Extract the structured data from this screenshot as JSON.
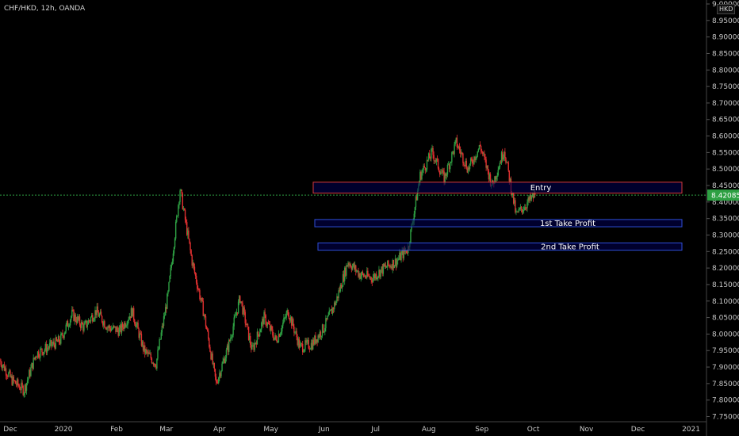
{
  "header": {
    "symbol_line": "CHF/HKD, 12h, OANDA",
    "currency": "HKD"
  },
  "price_axis": {
    "ticks": [
      "9.00000",
      "8.95000",
      "8.90000",
      "8.85000",
      "8.80000",
      "8.75000",
      "8.70000",
      "8.65000",
      "8.60000",
      "8.55000",
      "8.50000",
      "8.45000",
      "8.40000",
      "8.35000",
      "8.30000",
      "8.25000",
      "8.20000",
      "8.15000",
      "8.10000",
      "8.05000",
      "8.00000",
      "7.95000",
      "7.90000",
      "7.85000",
      "7.80000",
      "7.75000"
    ],
    "current_price": "8.42085",
    "current_price_value": 8.42085
  },
  "time_axis": {
    "ticks": [
      "Dec",
      "2020",
      "Feb",
      "Mar",
      "Apr",
      "May",
      "Jun",
      "Jul",
      "Aug",
      "Sep",
      "Oct",
      "Nov",
      "Dec",
      "2021"
    ]
  },
  "zones": [
    {
      "label": "Entry",
      "top": 8.46,
      "bottom": 8.427,
      "border": "#d93a3a"
    },
    {
      "label": "1st Take Profit",
      "top": 8.347,
      "bottom": 8.325,
      "border": "#2f4fd8"
    },
    {
      "label": "2nd Take Profit",
      "top": 8.276,
      "bottom": 8.254,
      "border": "#2f4fd8"
    }
  ],
  "colors": {
    "up": "#2ea043",
    "down": "#e03030",
    "last_price_line": "#2ea043",
    "zone_fill": "#000052"
  },
  "chart_data": {
    "type": "candlestick",
    "title": "CHF/HKD, 12h, OANDA",
    "ylim": [
      7.73,
      9.01
    ],
    "x_range": [
      "2019-11-25",
      "2021-01-10"
    ],
    "closes": [
      [
        "2019-11-25",
        7.92
      ],
      [
        "2019-12-02",
        7.86
      ],
      [
        "2019-12-09",
        7.83
      ],
      [
        "2019-12-16",
        7.94
      ],
      [
        "2019-12-23",
        7.96
      ],
      [
        "2019-12-30",
        7.98
      ],
      [
        "2020-01-06",
        8.06
      ],
      [
        "2020-01-13",
        8.02
      ],
      [
        "2020-01-20",
        8.07
      ],
      [
        "2020-01-27",
        8.02
      ],
      [
        "2020-02-03",
        8.01
      ],
      [
        "2020-02-10",
        8.07
      ],
      [
        "2020-02-17",
        7.95
      ],
      [
        "2020-02-24",
        7.91
      ],
      [
        "2020-03-02",
        8.12
      ],
      [
        "2020-03-09",
        8.44
      ],
      [
        "2020-03-16",
        8.22
      ],
      [
        "2020-03-23",
        8.06
      ],
      [
        "2020-03-30",
        7.85
      ],
      [
        "2020-04-06",
        7.96
      ],
      [
        "2020-04-13",
        8.11
      ],
      [
        "2020-04-20",
        7.95
      ],
      [
        "2020-04-27",
        8.05
      ],
      [
        "2020-05-04",
        7.98
      ],
      [
        "2020-05-11",
        8.07
      ],
      [
        "2020-05-18",
        7.96
      ],
      [
        "2020-05-25",
        7.97
      ],
      [
        "2020-06-01",
        8.02
      ],
      [
        "2020-06-08",
        8.1
      ],
      [
        "2020-06-15",
        8.22
      ],
      [
        "2020-06-22",
        8.18
      ],
      [
        "2020-06-29",
        8.17
      ],
      [
        "2020-07-06",
        8.2
      ],
      [
        "2020-07-13",
        8.22
      ],
      [
        "2020-07-20",
        8.26
      ],
      [
        "2020-07-27",
        8.48
      ],
      [
        "2020-08-03",
        8.55
      ],
      [
        "2020-08-10",
        8.47
      ],
      [
        "2020-08-17",
        8.58
      ],
      [
        "2020-08-24",
        8.5
      ],
      [
        "2020-08-31",
        8.57
      ],
      [
        "2020-09-07",
        8.45
      ],
      [
        "2020-09-14",
        8.56
      ],
      [
        "2020-09-21",
        8.36
      ],
      [
        "2020-09-28",
        8.4
      ],
      [
        "2020-10-02",
        8.42085
      ]
    ]
  }
}
